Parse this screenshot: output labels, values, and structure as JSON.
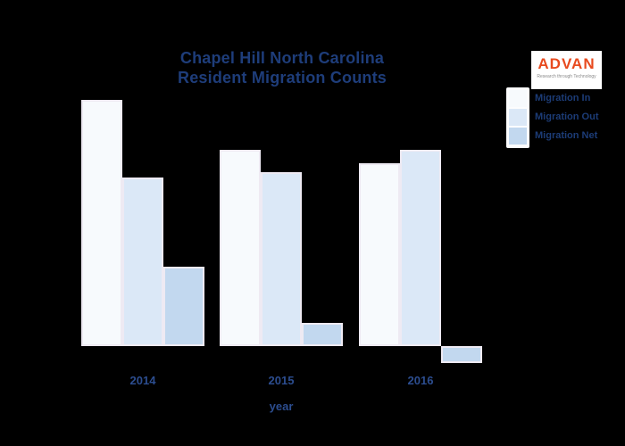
{
  "title": {
    "line1": "Chapel Hill North Carolina",
    "line2": "Resident Migration Counts"
  },
  "logo": {
    "name": "ADVAN",
    "tagline": "Research through Technology",
    "brand_color": "#e84a1e"
  },
  "legend": {
    "items": [
      {
        "label": "Migration In",
        "color": "#f7fafd"
      },
      {
        "label": "Migration Out",
        "color": "#dbe8f7"
      },
      {
        "label": "Migration Net",
        "color": "#c2d8ef"
      }
    ]
  },
  "x_axis": {
    "label": "year",
    "ticks": [
      "2014",
      "2015",
      "2016"
    ]
  },
  "colors": {
    "background": "#000000",
    "title_text": "#1e3d7a",
    "tick_text": "#2c4d8f",
    "bar_edge": "#eeeaf3"
  },
  "chart_data": {
    "type": "bar",
    "title": "Chapel Hill North Carolina Resident Migration Counts",
    "categories": [
      "2014",
      "2015",
      "2016"
    ],
    "series": [
      {
        "name": "Migration In",
        "values": [
          276,
          220,
          205
        ],
        "color": "#f7fafd"
      },
      {
        "name": "Migration Out",
        "values": [
          189,
          195,
          220
        ],
        "color": "#dbe8f7"
      },
      {
        "name": "Migration Net",
        "values": [
          89,
          26,
          -19
        ],
        "color": "#c2d8ef"
      }
    ],
    "xlabel": "year",
    "ylabel": "",
    "value_units": "relative units (no y-axis ticks or gridlines visible)",
    "grid": false,
    "legend_position": "upper right",
    "background": "#000000"
  }
}
